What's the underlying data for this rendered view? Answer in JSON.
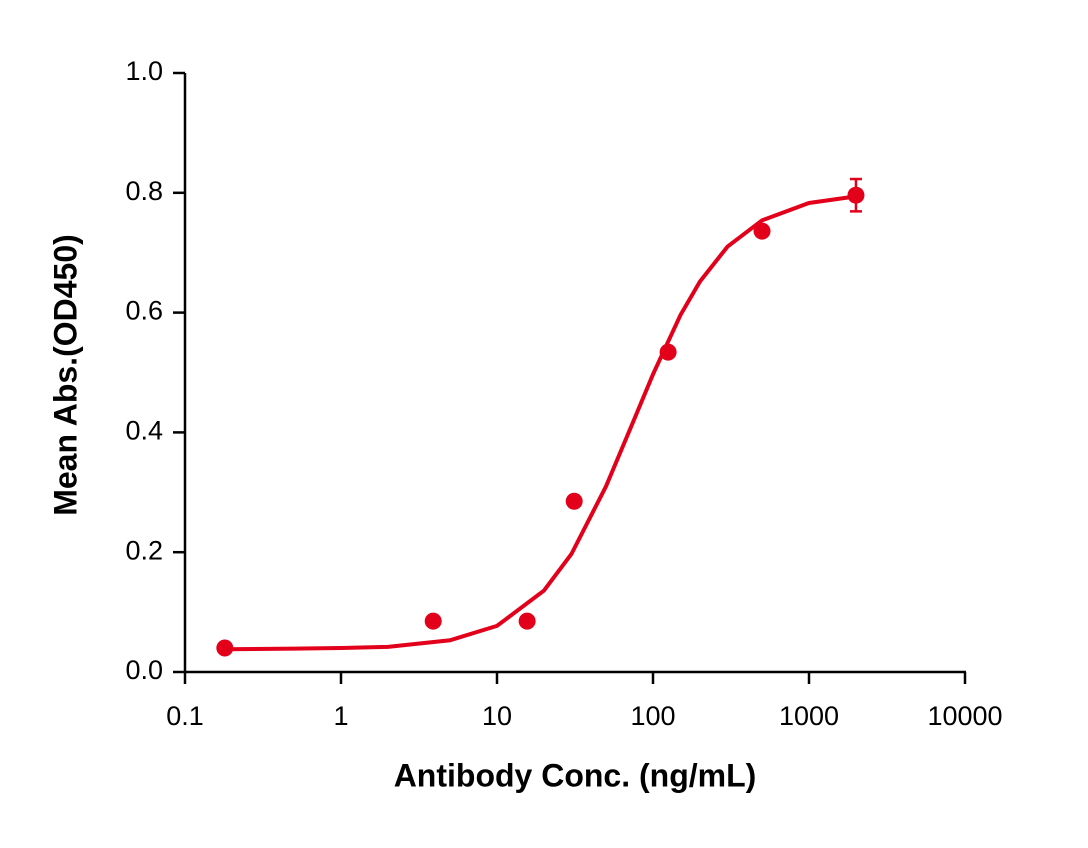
{
  "chart_data": {
    "type": "scatter",
    "xlabel": "Antibody Conc. (ng/mL)",
    "ylabel": "Mean Abs.(OD450)",
    "xscale": "log",
    "xlim": [
      0.1,
      10000
    ],
    "xticks": [
      0.1,
      1,
      10,
      100,
      1000,
      10000
    ],
    "ylim": [
      0,
      1
    ],
    "yticks": [
      {
        "value": 0,
        "label": "0.0"
      },
      0.2,
      0.4,
      0.6,
      0.8,
      {
        "value": 1,
        "label": "1.0"
      }
    ],
    "color": "#e3001b",
    "points": {
      "x": [
        0.18,
        3.9,
        15.6,
        31.25,
        125,
        500,
        2000
      ],
      "values": [
        0.04,
        0.085,
        0.085,
        0.285,
        0.534,
        0.736,
        0.796
      ],
      "errors": [
        null,
        null,
        null,
        null,
        null,
        null,
        0.027
      ]
    },
    "fit": {
      "x": [
        0.18,
        0.5,
        1,
        2,
        5,
        10,
        20,
        30,
        50,
        75,
        100,
        150,
        200,
        300,
        500,
        1000,
        2000
      ],
      "values": [
        0.038,
        0.039,
        0.04,
        0.042,
        0.053,
        0.077,
        0.136,
        0.197,
        0.31,
        0.419,
        0.497,
        0.596,
        0.652,
        0.71,
        0.754,
        0.783,
        0.794
      ]
    }
  }
}
